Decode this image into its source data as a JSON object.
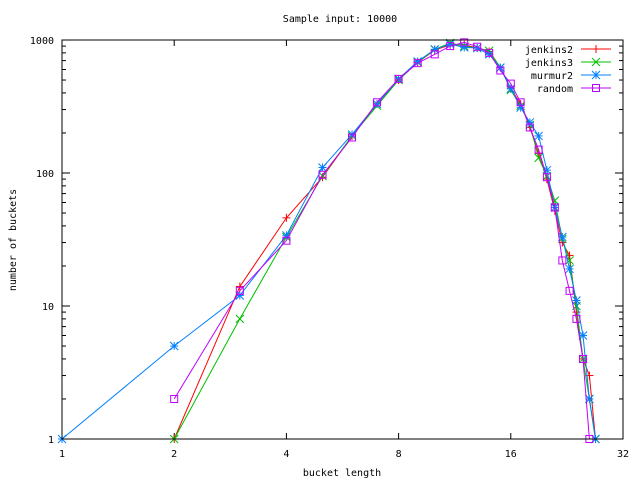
{
  "chart_data": {
    "type": "line",
    "title": "Sample input: 10000",
    "xlabel": "bucket length",
    "ylabel": "number of buckets",
    "xscale": "log2",
    "yscale": "log10",
    "xlim": [
      1,
      32
    ],
    "ylim": [
      1,
      1000
    ],
    "xticks": [
      1,
      2,
      4,
      8,
      16,
      32
    ],
    "xtick_labels": [
      "1",
      "2",
      "4",
      "8",
      "16",
      "32"
    ],
    "yticks": [
      1,
      10,
      100,
      1000
    ],
    "ytick_labels": [
      "1",
      "10",
      "100",
      "1000"
    ],
    "legend_position": "top-right",
    "series": [
      {
        "name": "jenkins2",
        "color": "#ff0000",
        "marker": "plus",
        "x": [
          2,
          3,
          4,
          5,
          6,
          7,
          8,
          9,
          10,
          11,
          12,
          13,
          14,
          15,
          16,
          17,
          18,
          19,
          20,
          21,
          22,
          23,
          24,
          25,
          26,
          27
        ],
        "y": [
          1,
          14,
          46,
          93,
          190,
          330,
          500,
          680,
          840,
          920,
          920,
          870,
          820,
          620,
          430,
          330,
          220,
          140,
          90,
          52,
          30,
          24,
          9,
          4,
          3,
          1
        ]
      },
      {
        "name": "jenkins3",
        "color": "#00c000",
        "marker": "cross",
        "x": [
          2,
          3,
          4,
          5,
          6,
          7,
          8,
          9,
          10,
          11,
          12,
          13,
          14,
          15,
          16,
          17,
          18,
          19,
          20,
          21,
          22,
          23,
          24,
          25,
          26,
          27
        ],
        "y": [
          1,
          8,
          33,
          95,
          190,
          320,
          500,
          680,
          850,
          950,
          900,
          870,
          830,
          620,
          420,
          320,
          230,
          130,
          95,
          62,
          32,
          22,
          10,
          4,
          2,
          1
        ]
      },
      {
        "name": "murmur2",
        "color": "#0080ff",
        "marker": "star",
        "x": [
          1,
          2,
          3,
          4,
          5,
          6,
          7,
          8,
          9,
          10,
          11,
          12,
          13,
          14,
          15,
          16,
          17,
          18,
          19,
          20,
          21,
          22,
          23,
          24,
          25,
          26,
          27
        ],
        "y": [
          1,
          5,
          12,
          34,
          110,
          195,
          330,
          510,
          690,
          850,
          930,
          880,
          870,
          780,
          620,
          430,
          310,
          240,
          190,
          105,
          55,
          33,
          19,
          11,
          6,
          2,
          1
        ]
      },
      {
        "name": "random",
        "color": "#c000ff",
        "marker": "square",
        "x": [
          2,
          3,
          4,
          5,
          6,
          7,
          8,
          9,
          10,
          11,
          12,
          13,
          14,
          15,
          16,
          17,
          18,
          19,
          20,
          21,
          22,
          23,
          24,
          25,
          26
        ],
        "y": [
          2,
          13,
          31,
          97,
          185,
          340,
          510,
          670,
          780,
          900,
          960,
          890,
          800,
          590,
          470,
          340,
          220,
          150,
          93,
          55,
          22,
          13,
          8,
          4,
          1
        ]
      }
    ]
  }
}
